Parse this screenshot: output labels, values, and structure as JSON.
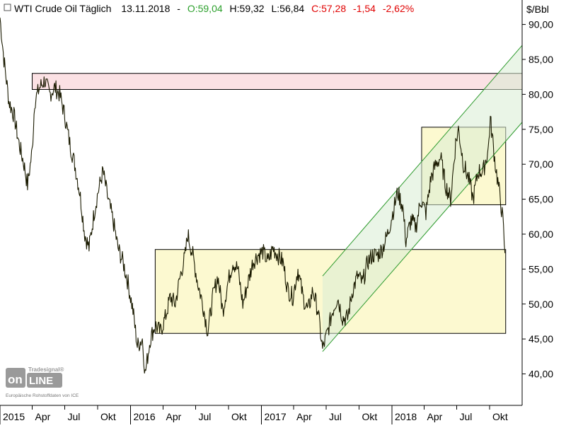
{
  "header": {
    "symbol_title": "WTI Crude Oil Täglich",
    "date": "13.11.2018",
    "open": "O:59,04",
    "high": "H:59,32",
    "low": "L:56,84",
    "close": "C:57,28",
    "change": "-1,54",
    "change_pct": "-2,62%"
  },
  "unit_label": "$/Bbl",
  "watermark": {
    "brand": "Tradesignal® Online",
    "source": "Europäische Rohstoffdaten von ICE"
  },
  "colors": {
    "price_line": "#1a1a00",
    "open_green": "#2ca02c",
    "close_red": "#e00000",
    "resistance_fill": "#fadadd",
    "box_fill": "#fbf7c4",
    "channel_line": "#2e9b2e",
    "channel_fill": "#d8ecd3"
  },
  "chart_data": {
    "type": "line",
    "title": "WTI Crude Oil Täglich",
    "ylabel": "$/Bbl",
    "ylim": [
      35.5,
      93.5
    ],
    "yticks": [
      "40,00",
      "45,00",
      "50,00",
      "55,00",
      "60,00",
      "65,00",
      "70,00",
      "75,00",
      "80,00",
      "85,00",
      "90,00"
    ],
    "ytick_values": [
      40,
      45,
      50,
      55,
      60,
      65,
      70,
      75,
      80,
      85,
      90
    ],
    "xlim": [
      "2015-01-01",
      "2018-12-31"
    ],
    "x_ticks": [
      {
        "date": "2015-01-01",
        "label": "2015",
        "major": true
      },
      {
        "date": "2015-04-01",
        "label": "Apr"
      },
      {
        "date": "2015-07-01",
        "label": "Jul"
      },
      {
        "date": "2015-10-01",
        "label": "Okt"
      },
      {
        "date": "2016-01-01",
        "label": "2016",
        "major": true
      },
      {
        "date": "2016-04-01",
        "label": "Apr"
      },
      {
        "date": "2016-07-01",
        "label": "Jul"
      },
      {
        "date": "2016-10-01",
        "label": "Okt"
      },
      {
        "date": "2017-01-01",
        "label": "2017",
        "major": true
      },
      {
        "date": "2017-04-01",
        "label": "Apr"
      },
      {
        "date": "2017-07-01",
        "label": "Jul"
      },
      {
        "date": "2017-10-01",
        "label": "Okt"
      },
      {
        "date": "2018-01-01",
        "label": "2018",
        "major": true
      },
      {
        "date": "2018-04-01",
        "label": "Apr"
      },
      {
        "date": "2018-07-01",
        "label": "Jul"
      },
      {
        "date": "2018-10-01",
        "label": "Okt"
      }
    ],
    "series": [
      {
        "type": "line",
        "points": [
          [
            "2015-01-01",
            91.0
          ],
          [
            "2015-01-12",
            85.0
          ],
          [
            "2015-01-26",
            79.0
          ],
          [
            "2015-02-09",
            77.0
          ],
          [
            "2015-02-23",
            73.0
          ],
          [
            "2015-03-09",
            70.0
          ],
          [
            "2015-03-19",
            67.0
          ],
          [
            "2015-04-01",
            72.0
          ],
          [
            "2015-04-08",
            79.0
          ],
          [
            "2015-04-22",
            81.0
          ],
          [
            "2015-05-06",
            82.0
          ],
          [
            "2015-05-20",
            80.0
          ],
          [
            "2015-06-03",
            81.0
          ],
          [
            "2015-06-17",
            80.0
          ],
          [
            "2015-07-01",
            77.0
          ],
          [
            "2015-07-15",
            73.0
          ],
          [
            "2015-07-29",
            70.0
          ],
          [
            "2015-08-12",
            66.0
          ],
          [
            "2015-08-26",
            60.0
          ],
          [
            "2015-09-07",
            58.0
          ],
          [
            "2015-09-21",
            63.0
          ],
          [
            "2015-10-02",
            66.0
          ],
          [
            "2015-10-16",
            69.0
          ],
          [
            "2015-10-30",
            65.0
          ],
          [
            "2015-11-13",
            62.0
          ],
          [
            "2015-11-27",
            58.0
          ],
          [
            "2015-12-11",
            56.0
          ],
          [
            "2015-12-25",
            53.0
          ],
          [
            "2016-01-08",
            49.0
          ],
          [
            "2016-01-20",
            44.0
          ],
          [
            "2016-02-03",
            45.0
          ],
          [
            "2016-02-11",
            40.0
          ],
          [
            "2016-02-25",
            45.0
          ],
          [
            "2016-03-10",
            47.0
          ],
          [
            "2016-03-24",
            46.0
          ],
          [
            "2016-04-07",
            48.0
          ],
          [
            "2016-04-21",
            51.0
          ],
          [
            "2016-05-05",
            50.0
          ],
          [
            "2016-05-19",
            54.0
          ],
          [
            "2016-06-02",
            57.0
          ],
          [
            "2016-06-09",
            60.0
          ],
          [
            "2016-06-23",
            57.0
          ],
          [
            "2016-07-07",
            53.0
          ],
          [
            "2016-07-21",
            50.0
          ],
          [
            "2016-08-04",
            46.0
          ],
          [
            "2016-08-18",
            51.0
          ],
          [
            "2016-09-01",
            54.0
          ],
          [
            "2016-09-15",
            49.0
          ],
          [
            "2016-09-29",
            53.0
          ],
          [
            "2016-10-13",
            56.0
          ],
          [
            "2016-10-27",
            55.0
          ],
          [
            "2016-11-10",
            50.0
          ],
          [
            "2016-11-24",
            53.0
          ],
          [
            "2016-12-08",
            56.0
          ],
          [
            "2016-12-22",
            57.0
          ],
          [
            "2017-01-05",
            57.5
          ],
          [
            "2017-01-19",
            56.0
          ],
          [
            "2017-02-02",
            58.0
          ],
          [
            "2017-02-16",
            57.0
          ],
          [
            "2017-03-02",
            56.0
          ],
          [
            "2017-03-16",
            52.0
          ],
          [
            "2017-03-30",
            51.0
          ],
          [
            "2017-04-13",
            55.0
          ],
          [
            "2017-04-27",
            51.0
          ],
          [
            "2017-05-11",
            49.0
          ],
          [
            "2017-05-25",
            52.0
          ],
          [
            "2017-06-08",
            49.0
          ],
          [
            "2017-06-21",
            43.5
          ],
          [
            "2017-07-05",
            46.0
          ],
          [
            "2017-07-19",
            49.0
          ],
          [
            "2017-08-02",
            51.0
          ],
          [
            "2017-08-16",
            48.0
          ],
          [
            "2017-08-30",
            48.0
          ],
          [
            "2017-09-13",
            52.0
          ],
          [
            "2017-09-27",
            54.0
          ],
          [
            "2017-10-11",
            53.0
          ],
          [
            "2017-10-25",
            56.0
          ],
          [
            "2017-11-08",
            57.0
          ],
          [
            "2017-11-22",
            57.0
          ],
          [
            "2017-12-06",
            58.0
          ],
          [
            "2017-12-20",
            60.0
          ],
          [
            "2018-01-03",
            63.0
          ],
          [
            "2018-01-17",
            66.0
          ],
          [
            "2018-01-31",
            64.0
          ],
          [
            "2018-02-09",
            59.0
          ],
          [
            "2018-02-23",
            62.0
          ],
          [
            "2018-03-09",
            61.0
          ],
          [
            "2018-03-23",
            65.0
          ],
          [
            "2018-04-06",
            63.0
          ],
          [
            "2018-04-20",
            68.0
          ],
          [
            "2018-05-04",
            70.0
          ],
          [
            "2018-05-17",
            71.0
          ],
          [
            "2018-05-31",
            67.0
          ],
          [
            "2018-06-14",
            65.0
          ],
          [
            "2018-06-28",
            73.0
          ],
          [
            "2018-07-06",
            75.0
          ],
          [
            "2018-07-20",
            70.0
          ],
          [
            "2018-08-03",
            68.0
          ],
          [
            "2018-08-16",
            65.0
          ],
          [
            "2018-08-30",
            69.0
          ],
          [
            "2018-09-13",
            69.0
          ],
          [
            "2018-09-27",
            72.0
          ],
          [
            "2018-10-03",
            76.5
          ],
          [
            "2018-10-17",
            70.0
          ],
          [
            "2018-10-31",
            65.0
          ],
          [
            "2018-11-07",
            62.0
          ],
          [
            "2018-11-13",
            57.28
          ]
        ]
      }
    ],
    "annotations": [
      {
        "type": "rect",
        "name": "resistance-zone",
        "x0": "2015-04-01",
        "x1": "2018-12-31",
        "y0": 80.7,
        "y1": 83.0,
        "fill": "#fadadd"
      },
      {
        "type": "rect",
        "name": "range-box-2016-2018",
        "x0": "2016-03-10",
        "x1": "2018-11-15",
        "y0": 45.8,
        "y1": 57.8,
        "fill": "#fbf7c4"
      },
      {
        "type": "rect",
        "name": "top-box-2018",
        "x0": "2018-03-25",
        "x1": "2018-11-15",
        "y0": 64.2,
        "y1": 75.3,
        "fill": "#fbf7c4"
      },
      {
        "type": "channel",
        "name": "uptrend-channel",
        "lower": [
          [
            "2017-06-21",
            43.2
          ],
          [
            "2018-12-31",
            76.0
          ]
        ],
        "upper": [
          [
            "2017-06-21",
            54.0
          ],
          [
            "2018-12-31",
            87.0
          ]
        ],
        "fill": "#d8ecd3"
      }
    ]
  }
}
